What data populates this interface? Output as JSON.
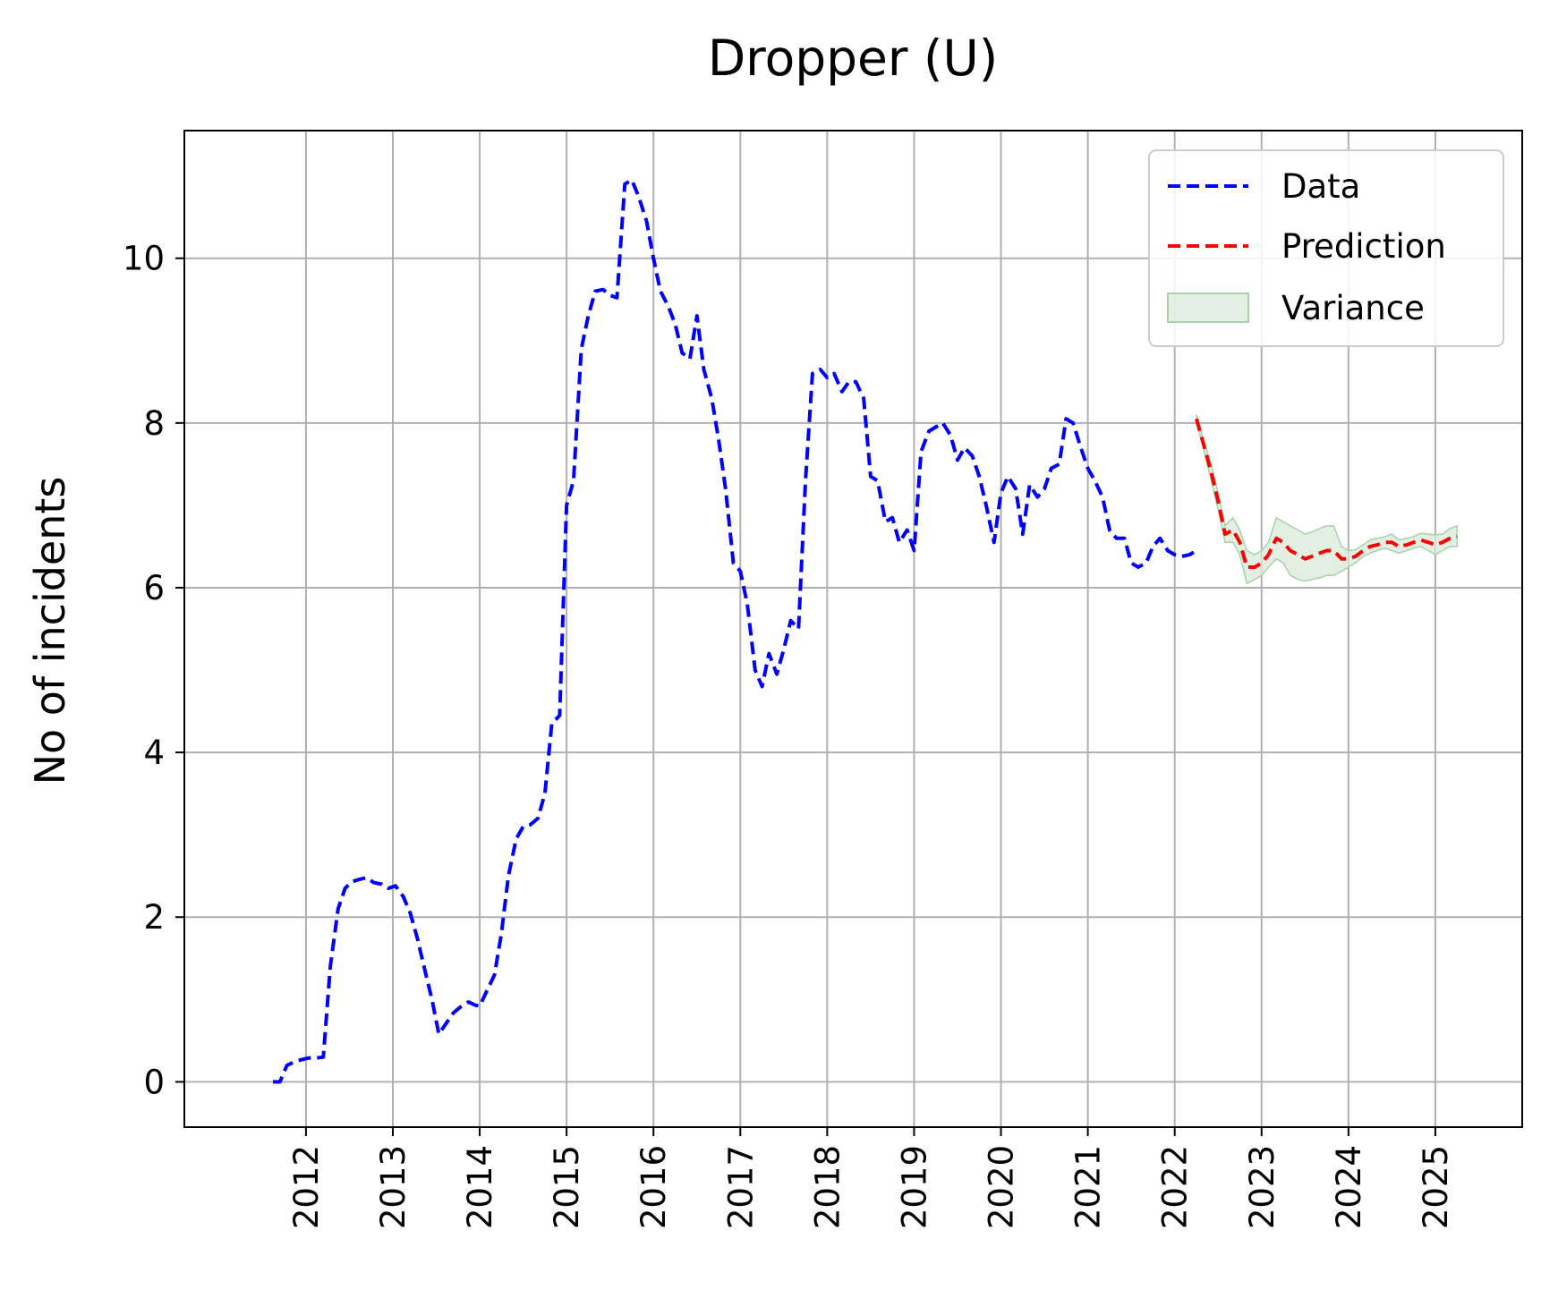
{
  "chart_data": {
    "type": "line",
    "title": "Dropper (U)",
    "xlabel": "",
    "ylabel": "No of incidents",
    "x_ticks": [
      "2012",
      "2013",
      "2014",
      "2015",
      "2016",
      "2017",
      "2018",
      "2019",
      "2020",
      "2021",
      "2022",
      "2023",
      "2024",
      "2025"
    ],
    "y_ticks": [
      "0",
      "2",
      "4",
      "6",
      "8",
      "10"
    ],
    "xlim": [
      2010.6,
      2026.0
    ],
    "ylim": [
      -0.55,
      11.55
    ],
    "grid": true,
    "legend_position": "top-right",
    "colors": {
      "data": "#0000ff",
      "prediction": "#ff0000",
      "variance_fill": "#d8ead8",
      "variance_edge": "#a9d2a9",
      "grid": "#b0b0b0"
    },
    "series": [
      {
        "name": "Data",
        "style": "dashed",
        "x": [
          2011.62,
          2011.7,
          2011.78,
          2011.86,
          2011.95,
          2012.03,
          2012.12,
          2012.2,
          2012.28,
          2012.37,
          2012.45,
          2012.53,
          2012.62,
          2012.7,
          2012.78,
          2012.87,
          2012.95,
          2013.03,
          2013.12,
          2013.2,
          2013.28,
          2013.37,
          2013.45,
          2013.53,
          2013.62,
          2013.7,
          2013.78,
          2013.87,
          2013.95,
          2014.0,
          2014.08,
          2014.17,
          2014.25,
          2014.33,
          2014.42,
          2014.5,
          2014.58,
          2014.67,
          2014.75,
          2014.83,
          2014.92,
          2015.0,
          2015.08,
          2015.17,
          2015.25,
          2015.33,
          2015.42,
          2015.5,
          2015.58,
          2015.67,
          2015.75,
          2015.83,
          2015.92,
          2016.0,
          2016.08,
          2016.17,
          2016.25,
          2016.33,
          2016.42,
          2016.5,
          2016.58,
          2016.67,
          2016.75,
          2016.83,
          2016.92,
          2017.0,
          2017.08,
          2017.17,
          2017.25,
          2017.33,
          2017.42,
          2017.5,
          2017.58,
          2017.67,
          2017.75,
          2017.83,
          2017.92,
          2018.0,
          2018.08,
          2018.17,
          2018.25,
          2018.33,
          2018.42,
          2018.5,
          2018.58,
          2018.67,
          2018.75,
          2018.83,
          2018.92,
          2019.0,
          2019.08,
          2019.17,
          2019.25,
          2019.33,
          2019.42,
          2019.5,
          2019.58,
          2019.67,
          2019.75,
          2019.83,
          2019.92,
          2020.0,
          2020.08,
          2020.17,
          2020.25,
          2020.33,
          2020.42,
          2020.5,
          2020.58,
          2020.67,
          2020.75,
          2020.83,
          2020.92,
          2021.0,
          2021.08,
          2021.17,
          2021.25,
          2021.33,
          2021.42,
          2021.5,
          2021.58,
          2021.67,
          2021.75,
          2021.83,
          2021.92,
          2022.0,
          2022.08,
          2022.17,
          2022.25
        ],
        "y": [
          0.0,
          0.0,
          0.2,
          0.24,
          0.27,
          0.29,
          0.29,
          0.3,
          1.4,
          2.1,
          2.35,
          2.43,
          2.46,
          2.48,
          2.42,
          2.4,
          2.35,
          2.38,
          2.25,
          2.05,
          1.75,
          1.35,
          1.0,
          0.58,
          0.72,
          0.84,
          0.91,
          0.97,
          0.93,
          0.92,
          1.1,
          1.3,
          1.8,
          2.5,
          2.95,
          3.1,
          3.12,
          3.2,
          3.5,
          4.35,
          4.45,
          7.0,
          7.3,
          8.9,
          9.3,
          9.6,
          9.62,
          9.55,
          9.52,
          10.9,
          10.95,
          10.75,
          10.45,
          10.0,
          9.6,
          9.42,
          9.2,
          8.85,
          8.78,
          9.3,
          8.65,
          8.3,
          7.8,
          7.2,
          6.3,
          6.2,
          5.8,
          5.0,
          4.8,
          5.2,
          4.95,
          5.25,
          5.6,
          5.5,
          7.3,
          8.6,
          8.65,
          8.55,
          8.6,
          8.38,
          8.5,
          8.5,
          8.3,
          7.35,
          7.3,
          6.8,
          6.85,
          6.55,
          6.7,
          6.45,
          7.65,
          7.9,
          7.95,
          8.0,
          7.85,
          7.55,
          7.7,
          7.6,
          7.35,
          7.0,
          6.55,
          7.15,
          7.35,
          7.2,
          6.65,
          7.25,
          7.1,
          7.2,
          7.45,
          7.5,
          8.05,
          8.0,
          7.7,
          7.45,
          7.3,
          7.1,
          6.7,
          6.6,
          6.6,
          6.3,
          6.25,
          6.3,
          6.5,
          6.6,
          6.45,
          6.4,
          6.38,
          6.4,
          6.45
        ]
      },
      {
        "name": "Prediction",
        "style": "dashed",
        "x": [
          2022.25,
          2022.33,
          2022.42,
          2022.5,
          2022.58,
          2022.67,
          2022.75,
          2022.83,
          2022.92,
          2023.0,
          2023.08,
          2023.17,
          2023.25,
          2023.33,
          2023.42,
          2023.5,
          2023.58,
          2023.67,
          2023.75,
          2023.83,
          2023.92,
          2024.0,
          2024.08,
          2024.17,
          2024.25,
          2024.33,
          2024.42,
          2024.5,
          2024.58,
          2024.67,
          2024.75,
          2024.83,
          2024.92,
          2025.0,
          2025.08,
          2025.17,
          2025.25
        ],
        "y": [
          8.05,
          7.75,
          7.4,
          7.05,
          6.65,
          6.7,
          6.55,
          6.25,
          6.25,
          6.3,
          6.4,
          6.6,
          6.55,
          6.45,
          6.4,
          6.35,
          6.38,
          6.42,
          6.45,
          6.45,
          6.35,
          6.35,
          6.38,
          6.45,
          6.5,
          6.52,
          6.55,
          6.55,
          6.5,
          6.52,
          6.55,
          6.58,
          6.55,
          6.52,
          6.55,
          6.6,
          6.62
        ]
      }
    ],
    "variance": {
      "name": "Variance",
      "x": [
        2022.25,
        2022.33,
        2022.42,
        2022.5,
        2022.58,
        2022.67,
        2022.75,
        2022.83,
        2022.92,
        2023.0,
        2023.08,
        2023.17,
        2023.25,
        2023.33,
        2023.42,
        2023.5,
        2023.58,
        2023.67,
        2023.75,
        2023.83,
        2023.92,
        2024.0,
        2024.08,
        2024.17,
        2024.25,
        2024.33,
        2024.42,
        2024.5,
        2024.58,
        2024.67,
        2024.75,
        2024.83,
        2024.92,
        2025.0,
        2025.08,
        2025.17,
        2025.25
      ],
      "lower": [
        8.0,
        7.7,
        7.3,
        6.95,
        6.55,
        6.55,
        6.4,
        6.05,
        6.1,
        6.15,
        6.25,
        6.35,
        6.3,
        6.15,
        6.1,
        6.08,
        6.1,
        6.12,
        6.15,
        6.15,
        6.2,
        6.25,
        6.3,
        6.38,
        6.42,
        6.45,
        6.48,
        6.45,
        6.42,
        6.45,
        6.48,
        6.5,
        6.45,
        6.4,
        6.45,
        6.5,
        6.5
      ],
      "upper": [
        8.1,
        7.8,
        7.5,
        7.15,
        6.75,
        6.85,
        6.7,
        6.45,
        6.4,
        6.45,
        6.55,
        6.85,
        6.8,
        6.75,
        6.7,
        6.65,
        6.68,
        6.72,
        6.75,
        6.75,
        6.5,
        6.45,
        6.46,
        6.52,
        6.58,
        6.6,
        6.62,
        6.65,
        6.58,
        6.6,
        6.62,
        6.66,
        6.65,
        6.64,
        6.65,
        6.72,
        6.75
      ]
    }
  }
}
